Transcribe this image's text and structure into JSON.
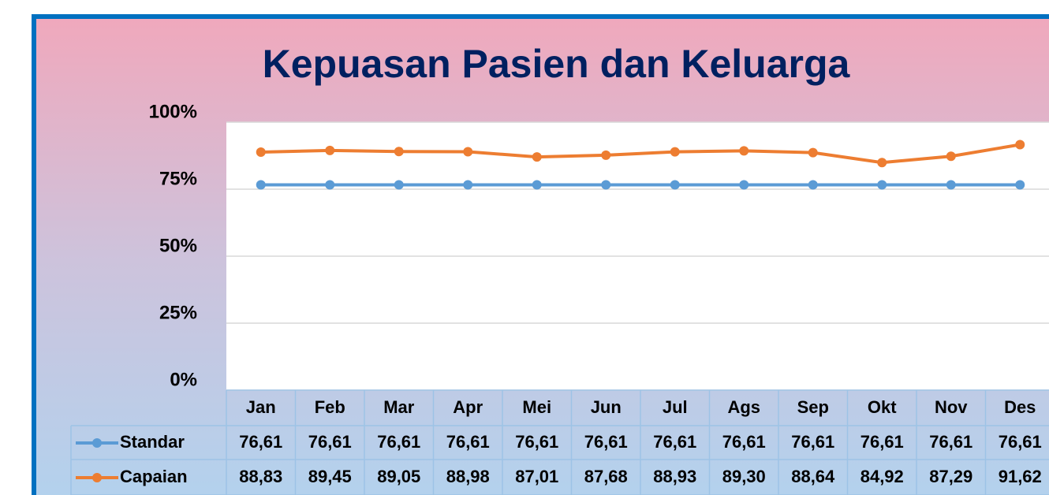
{
  "chart_data": {
    "type": "line",
    "title": "Kepuasan Pasien dan Keluarga",
    "categories": [
      "Jan",
      "Feb",
      "Mar",
      "Apr",
      "Mei",
      "Jun",
      "Jul",
      "Ags",
      "Sep",
      "Okt",
      "Nov",
      "Des"
    ],
    "series": [
      {
        "name": "Standar",
        "color": "#5b9bd5",
        "values": [
          76.61,
          76.61,
          76.61,
          76.61,
          76.61,
          76.61,
          76.61,
          76.61,
          76.61,
          76.61,
          76.61,
          76.61
        ],
        "value_labels": [
          "76,61",
          "76,61",
          "76,61",
          "76,61",
          "76,61",
          "76,61",
          "76,61",
          "76,61",
          "76,61",
          "76,61",
          "76,61",
          "76,61"
        ]
      },
      {
        "name": "Capaian",
        "color": "#ed7d31",
        "values": [
          88.83,
          89.45,
          89.05,
          88.98,
          87.01,
          87.68,
          88.93,
          89.3,
          88.64,
          84.92,
          87.29,
          91.62
        ],
        "value_labels": [
          "88,83",
          "89,45",
          "89,05",
          "88,98",
          "87,01",
          "87,68",
          "88,93",
          "89,30",
          "88,64",
          "84,92",
          "87,29",
          "91,62"
        ]
      }
    ],
    "ylim": [
      0,
      100
    ],
    "yticks": [
      {
        "value": 0,
        "label": "0%"
      },
      {
        "value": 25,
        "label": "25%"
      },
      {
        "value": 50,
        "label": "50%"
      },
      {
        "value": 75,
        "label": "75%"
      },
      {
        "value": 100,
        "label": "100%"
      }
    ],
    "grid": true
  }
}
